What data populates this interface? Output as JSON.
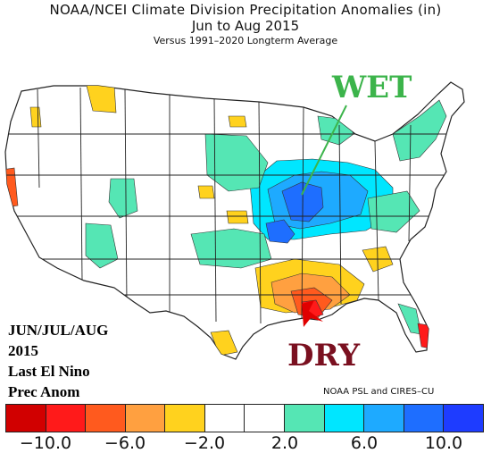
{
  "title": "NOAA/NCEI Climate Division Precipitation Anomalies (in)",
  "subtitle": "Jun to Aug 2015",
  "subsubtitle": "Versus 1991–2020 Longterm Average",
  "annotations": {
    "wet": "WET",
    "dry": "DRY"
  },
  "side_labels": [
    "JUN/JUL/AUG",
    "2015",
    "Last El Nino",
    "Prec Anom"
  ],
  "credit": "NOAA PSL and CIRES–CU",
  "colorbar": {
    "colors": [
      "#d10000",
      "#ff1a1a",
      "#ff5a1e",
      "#ffa040",
      "#ffd21e",
      "#ffffff",
      "#ffffff",
      "#55e6b4",
      "#00e6ff",
      "#1eaaff",
      "#1e6eff",
      "#1e3cff"
    ],
    "ticks": [
      "−10.0",
      "−6.0",
      "−2.0",
      "2.0",
      "6.0",
      "10.0"
    ]
  }
}
